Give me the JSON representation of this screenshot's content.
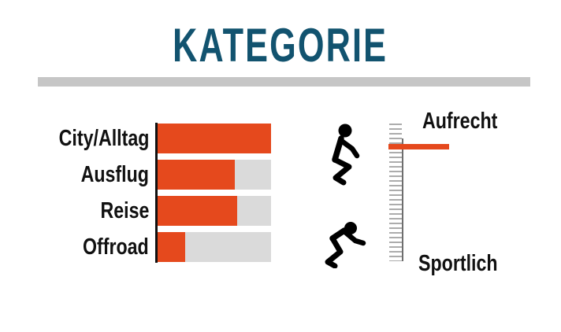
{
  "title": "KATEGORIE",
  "colors": {
    "title": "#12536F",
    "bar_fill": "#E5491D",
    "bar_track": "#DADADA",
    "divider": "#C6C6C6",
    "tick": "#ACACAC",
    "marker": "#E5491D",
    "text": "#111111"
  },
  "chart_data": [
    {
      "type": "bar",
      "title": "KATEGORIE",
      "orientation": "horizontal",
      "categories": [
        "City/Alltag",
        "Ausflug",
        "Reise",
        "Offroad"
      ],
      "values": [
        100,
        68,
        70,
        24
      ],
      "value_unit": "percent_of_track_filled",
      "xlim": [
        0,
        100
      ],
      "grid": false,
      "legend": false,
      "bar_color": "#E5491D",
      "track_color": "#DADADA"
    },
    {
      "type": "scale",
      "subtype": "vertical-position-gauge",
      "top_label": "Aufrecht",
      "bottom_label": "Sportlich",
      "marker_percent_from_top": 17,
      "marker_color": "#E5491D",
      "icons": [
        "upright-rider-icon",
        "sporty-rider-icon"
      ]
    }
  ]
}
